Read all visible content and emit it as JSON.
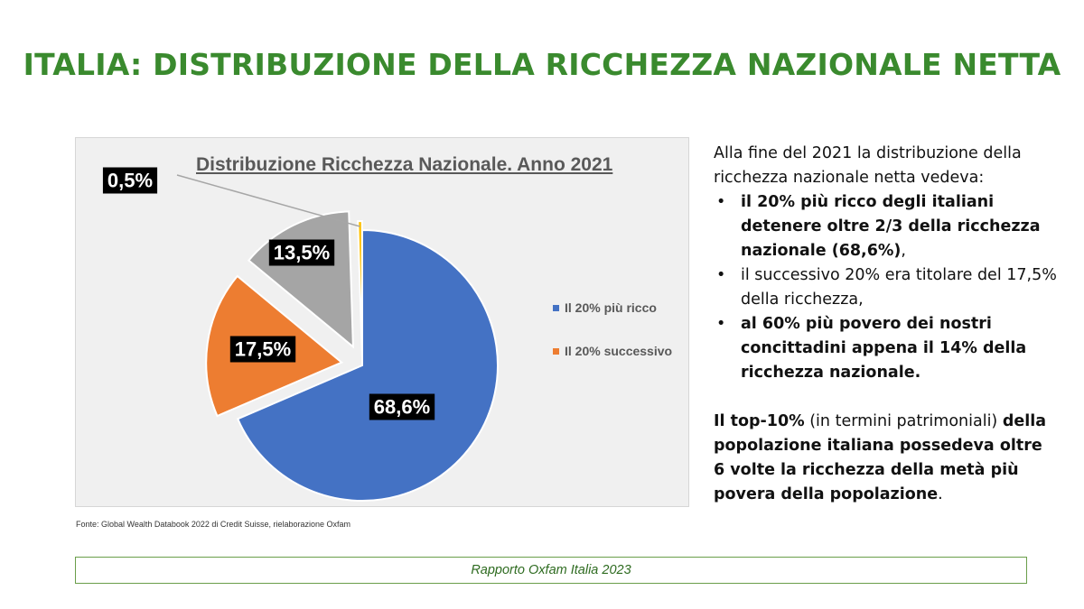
{
  "slide": {
    "title": "ITALIA: DISTRIBUZIONE DELLA RICCHEZZA NAZIONALE NETTA",
    "source": "Fonte: Global Wealth Databook 2022 di Credit Suisse, rielaborazione  Oxfam",
    "footer": "Rapporto Oxfam Italia 2023"
  },
  "text": {
    "intro": "Alla fine del 2021 la distribuzione della ricchezza nazionale netta vedeva:",
    "bullets": [
      {
        "segments": [
          {
            "text": "il 20% più ricco degli italiani detenere oltre 2/3 della ricchezza nazionale (68,6%)",
            "bold": true
          },
          {
            "text": ",",
            "bold": false
          }
        ]
      },
      {
        "segments": [
          {
            "text": "il successivo 20% era titolare del 17,5% della ricchezza,",
            "bold": false
          }
        ]
      },
      {
        "segments": [
          {
            "text": "al 60% più povero dei nostri concittadini appena il 14% della ricchezza nazionale.",
            "bold": true
          }
        ]
      }
    ],
    "conclusion": [
      {
        "text": "Il top-10%",
        "bold": true
      },
      {
        "text": " (in termini patrimoniali) ",
        "bold": false
      },
      {
        "text": "della popolazione italiana possedeva oltre 6 volte la ricchezza della metà più povera della popolazione",
        "bold": true
      },
      {
        "text": ".",
        "bold": false
      }
    ]
  },
  "chart_data": {
    "type": "pie",
    "title": "Distribuzione Ricchezza Nazionale. Anno 2021",
    "unit": "%",
    "slices": [
      {
        "name": "Il 20% più ricco",
        "label": "68,6%",
        "value": 68.6,
        "color": "#4472c4",
        "legend": true
      },
      {
        "name": "Il 20% successivo",
        "label": "17,5%",
        "value": 17.5,
        "color": "#ed7d31",
        "legend": true
      },
      {
        "name": "",
        "label": "13,5%",
        "value": 13.5,
        "color": "#a5a5a5",
        "legend": false
      },
      {
        "name": "",
        "label": "0,5%",
        "value": 0.5,
        "color": "#ffc000",
        "legend": false
      }
    ],
    "label_style": {
      "background": "#000000",
      "color": "#ffffff"
    },
    "legend_position": "right"
  }
}
